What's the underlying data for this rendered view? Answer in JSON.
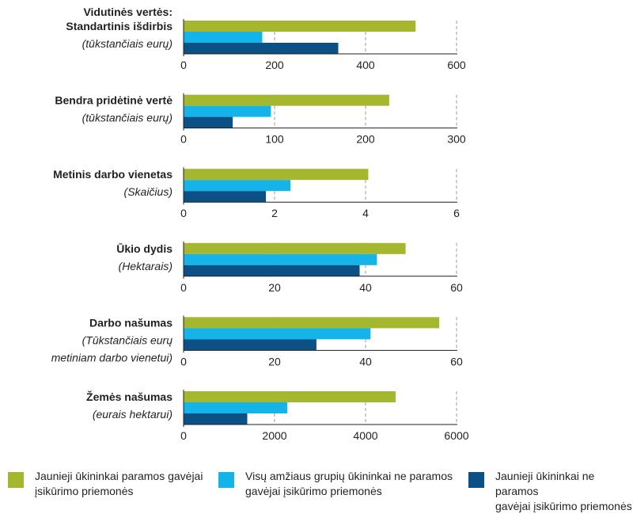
{
  "header": "Vidutinės vertės:",
  "colors": {
    "young_support": "#a5b72e",
    "all_no_support": "#14b4e8",
    "young_no_support": "#0b5186",
    "grid": "#9a9a9a",
    "axis": "#231f20"
  },
  "legend": [
    {
      "key": "young_support",
      "line1": "Jaunieji ūkininkai paramos gavėjai",
      "line2": "įsikūrimo priemonės"
    },
    {
      "key": "all_no_support",
      "line1": "Visų amžiaus grupių ūkininkai ne paramos",
      "line2": "gavėjai įsikūrimo priemonės"
    },
    {
      "key": "young_no_support",
      "line1": "Jaunieji ūkininkai ne paramos",
      "line2": "gavėjai įsikūrimo priemonės"
    }
  ],
  "chart_data": [
    {
      "type": "bar",
      "title": "Standartinis išdirbis",
      "subtitle": [
        "(tūkstančiais eurų)"
      ],
      "ticks": [
        "0",
        "200",
        "400",
        "600"
      ],
      "xlim": [
        0,
        600
      ],
      "series": [
        {
          "key": "young_support",
          "name": "Jaunieji ūkininkai paramos gavėjai įsikūrimo priemonės",
          "value": 510
        },
        {
          "key": "all_no_support",
          "name": "Visų amžiaus grupių ūkininkai ne paramos gavėjai įsikūrimo priemonės",
          "value": 173
        },
        {
          "key": "young_no_support",
          "name": "Jaunieji ūkininkai ne paramos gavėjai įsikūrimo priemonės",
          "value": 340
        }
      ]
    },
    {
      "type": "bar",
      "title": "Bendra pridėtinė vertė",
      "subtitle": [
        "(tūkstančiais eurų)"
      ],
      "ticks": [
        "0",
        "100",
        "200",
        "300"
      ],
      "xlim": [
        0,
        300
      ],
      "series": [
        {
          "key": "young_support",
          "name": "Jaunieji ūkininkai paramos gavėjai įsikūrimo priemonės",
          "value": 226
        },
        {
          "key": "all_no_support",
          "name": "Visų amžiaus grupių ūkininkai ne paramos gavėjai įsikūrimo priemonės",
          "value": 96
        },
        {
          "key": "young_no_support",
          "name": "Jaunieji ūkininkai ne paramos gavėjai įsikūrimo priemonės",
          "value": 54
        }
      ]
    },
    {
      "type": "bar",
      "title": "Metinis darbo vienetas",
      "subtitle": [
        "(Skaičius)"
      ],
      "ticks": [
        "0",
        "2",
        "4",
        "6"
      ],
      "xlim": [
        0,
        6
      ],
      "series": [
        {
          "key": "young_support",
          "name": "Jaunieji ūkininkai paramos gavėjai įsikūrimo priemonės",
          "value": 4.06
        },
        {
          "key": "all_no_support",
          "name": "Visų amžiaus grupių ūkininkai ne paramos gavėjai įsikūrimo priemonės",
          "value": 2.35
        },
        {
          "key": "young_no_support",
          "name": "Jaunieji ūkininkai ne paramos gavėjai įsikūrimo priemonės",
          "value": 1.81
        }
      ]
    },
    {
      "type": "bar",
      "title": "Ūkio dydis",
      "subtitle": [
        "(Hektarais)"
      ],
      "ticks": [
        "0",
        "20",
        "40",
        "60"
      ],
      "xlim": [
        0,
        60
      ],
      "series": [
        {
          "key": "young_support",
          "name": "Jaunieji ūkininkai paramos gavėjai įsikūrimo priemonės",
          "value": 48.8
        },
        {
          "key": "all_no_support",
          "name": "Visų amžiaus grupių ūkininkai ne paramos gavėjai įsikūrimo priemonės",
          "value": 42.5
        },
        {
          "key": "young_no_support",
          "name": "Jaunieji ūkininkai ne paramos gavėjai įsikūrimo priemonės",
          "value": 38.7
        }
      ]
    },
    {
      "type": "bar",
      "title": "Darbo našumas",
      "subtitle": [
        "(Tūkstančiais eurų",
        "metiniam darbo vienetui)"
      ],
      "ticks": [
        "0",
        "20",
        "40",
        "60"
      ],
      "xlim": [
        0,
        60
      ],
      "series": [
        {
          "key": "young_support",
          "name": "Jaunieji ūkininkai paramos gavėjai įsikūrimo priemonės",
          "value": 56.2
        },
        {
          "key": "all_no_support",
          "name": "Visų amžiaus grupių ūkininkai ne paramos gavėjai įsikūrimo priemonės",
          "value": 41.1
        },
        {
          "key": "young_no_support",
          "name": "Jaunieji ūkininkai ne paramos gavėjai įsikūrimo priemonės",
          "value": 29.2
        }
      ]
    },
    {
      "type": "bar",
      "title": "Žemės našumas",
      "subtitle": [
        "(eurais hektarui)"
      ],
      "ticks": [
        "0",
        "2000",
        "4000",
        "6000"
      ],
      "xlim": [
        0,
        6000
      ],
      "series": [
        {
          "key": "young_support",
          "name": "Jaunieji ūkininkai paramos gavėjai įsikūrimo priemonės",
          "value": 4660
        },
        {
          "key": "all_no_support",
          "name": "Visų amžiaus grupių ūkininkai ne paramos gavėjai įsikūrimo priemonės",
          "value": 2280
        },
        {
          "key": "young_no_support",
          "name": "Jaunieji ūkininkai ne paramos gavėjai įsikūrimo priemonės",
          "value": 1400
        }
      ]
    }
  ]
}
